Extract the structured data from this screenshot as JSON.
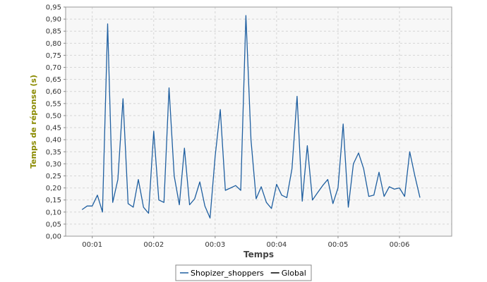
{
  "chart_data": {
    "type": "line",
    "title": "",
    "xlabel": "Temps",
    "ylabel": "Temps de réponse (s)",
    "ylim": [
      0,
      0.95
    ],
    "xlim": [
      "00:00:34",
      "00:06:51"
    ],
    "grid": true,
    "legend_position": "bottom",
    "x_tick_labels": [
      "00:01",
      "00:02",
      "00:03",
      "00:04",
      "00:05",
      "00:06"
    ],
    "x_tick_values": [
      "00:01:00",
      "00:02:00",
      "00:03:00",
      "00:04:00",
      "00:05:00",
      "00:06:00"
    ],
    "y_tick_labels": [
      "0,00",
      "0,05",
      "0,10",
      "0,15",
      "0,20",
      "0,25",
      "0,30",
      "0,35",
      "0,40",
      "0,45",
      "0,50",
      "0,55",
      "0,60",
      "0,65",
      "0,70",
      "0,75",
      "0,80",
      "0,85",
      "0,90",
      "0,95"
    ],
    "y_tick_values": [
      0,
      0.05,
      0.1,
      0.15,
      0.2,
      0.25,
      0.3,
      0.35,
      0.4,
      0.45,
      0.5,
      0.55,
      0.6,
      0.65,
      0.7,
      0.75,
      0.8,
      0.85,
      0.9,
      0.95
    ],
    "series": [
      {
        "name": "Shopizer_shoppers",
        "color": "#1f5fa0",
        "x": [
          "00:00:50",
          "00:00:55",
          "00:01:00",
          "00:01:05",
          "00:01:10",
          "00:01:15",
          "00:01:20",
          "00:01:25",
          "00:01:30",
          "00:01:35",
          "00:01:40",
          "00:01:45",
          "00:01:50",
          "00:01:55",
          "00:02:00",
          "00:02:05",
          "00:02:10",
          "00:02:15",
          "00:02:20",
          "00:02:25",
          "00:02:30",
          "00:02:35",
          "00:02:40",
          "00:02:45",
          "00:02:50",
          "00:02:55",
          "00:03:00",
          "00:03:05",
          "00:03:10",
          "00:03:15",
          "00:03:20",
          "00:03:25",
          "00:03:30",
          "00:03:35",
          "00:03:40",
          "00:03:45",
          "00:03:50",
          "00:03:55",
          "00:04:00",
          "00:04:05",
          "00:04:10",
          "00:04:15",
          "00:04:20",
          "00:04:25",
          "00:04:30",
          "00:04:35",
          "00:04:40",
          "00:04:45",
          "00:04:50",
          "00:04:55",
          "00:05:00",
          "00:05:05",
          "00:05:10",
          "00:05:15",
          "00:05:20",
          "00:05:25",
          "00:05:30",
          "00:05:35",
          "00:05:40",
          "00:05:45",
          "00:05:50",
          "00:05:55",
          "00:06:00",
          "00:06:05",
          "00:06:10",
          "00:06:15",
          "00:06:20"
        ],
        "y": [
          0.11,
          0.125,
          0.125,
          0.17,
          0.1,
          0.88,
          0.14,
          0.235,
          0.57,
          0.135,
          0.12,
          0.235,
          0.12,
          0.095,
          0.435,
          0.15,
          0.14,
          0.615,
          0.25,
          0.13,
          0.365,
          0.13,
          0.155,
          0.225,
          0.125,
          0.075,
          0.33,
          0.525,
          0.19,
          0.2,
          0.21,
          0.19,
          0.915,
          0.4,
          0.155,
          0.205,
          0.14,
          0.115,
          0.215,
          0.17,
          0.16,
          0.28,
          0.58,
          0.145,
          0.375,
          0.15,
          0.18,
          0.21,
          0.235,
          0.135,
          0.2,
          0.465,
          0.12,
          0.3,
          0.345,
          0.28,
          0.165,
          0.17,
          0.265,
          0.165,
          0.205,
          0.195,
          0.2,
          0.165,
          0.35,
          0.25,
          0.16
        ]
      },
      {
        "name": "Global",
        "color": "#000000",
        "x": [],
        "y": []
      }
    ]
  }
}
